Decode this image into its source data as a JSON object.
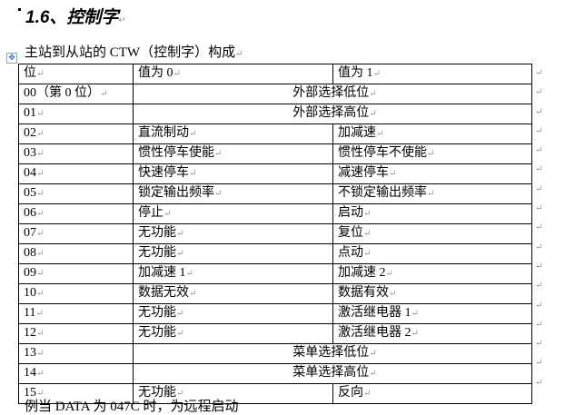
{
  "heading": "1.6、控制字",
  "caption": "主站到从站的 CTW（控制字）构成",
  "table": {
    "headers": [
      "位",
      "值为 0",
      "值为 1"
    ],
    "rows": [
      {
        "bit": "00（第 0 位）",
        "merged": "外部选择低位"
      },
      {
        "bit": "01",
        "merged": "外部选择高位"
      },
      {
        "bit": "02",
        "v0": "直流制动",
        "v1": "加减速"
      },
      {
        "bit": "03",
        "v0": "惯性停车使能",
        "v1": "惯性停车不使能"
      },
      {
        "bit": "04",
        "v0": "快速停车",
        "v1": "减速停车"
      },
      {
        "bit": "05",
        "v0": "锁定输出频率",
        "v1": "不锁定输出频率"
      },
      {
        "bit": "06",
        "v0": "停止",
        "v1": "启动"
      },
      {
        "bit": "07",
        "v0": "无功能",
        "v1": "复位"
      },
      {
        "bit": "08",
        "v0": "无功能",
        "v1": "点动"
      },
      {
        "bit": "09",
        "v0": "加减速 1",
        "v1": "加减速 2"
      },
      {
        "bit": "10",
        "v0": "数据无效",
        "v1": "数据有效"
      },
      {
        "bit": "11",
        "v0": "无功能",
        "v1": "激活继电器 1"
      },
      {
        "bit": "12",
        "v0": "无功能",
        "v1": "激活继电器 2"
      },
      {
        "bit": "13",
        "merged": "菜单选择低位"
      },
      {
        "bit": "14",
        "merged": "菜单选择高位"
      },
      {
        "bit": "15",
        "v0": "无功能",
        "v1": "反向"
      }
    ]
  },
  "footer": "例当 DATA 为 047C 时，为远程启动",
  "icons": {
    "move": "table-move-handle-icon",
    "paragraph": "paragraph-mark-icon"
  }
}
